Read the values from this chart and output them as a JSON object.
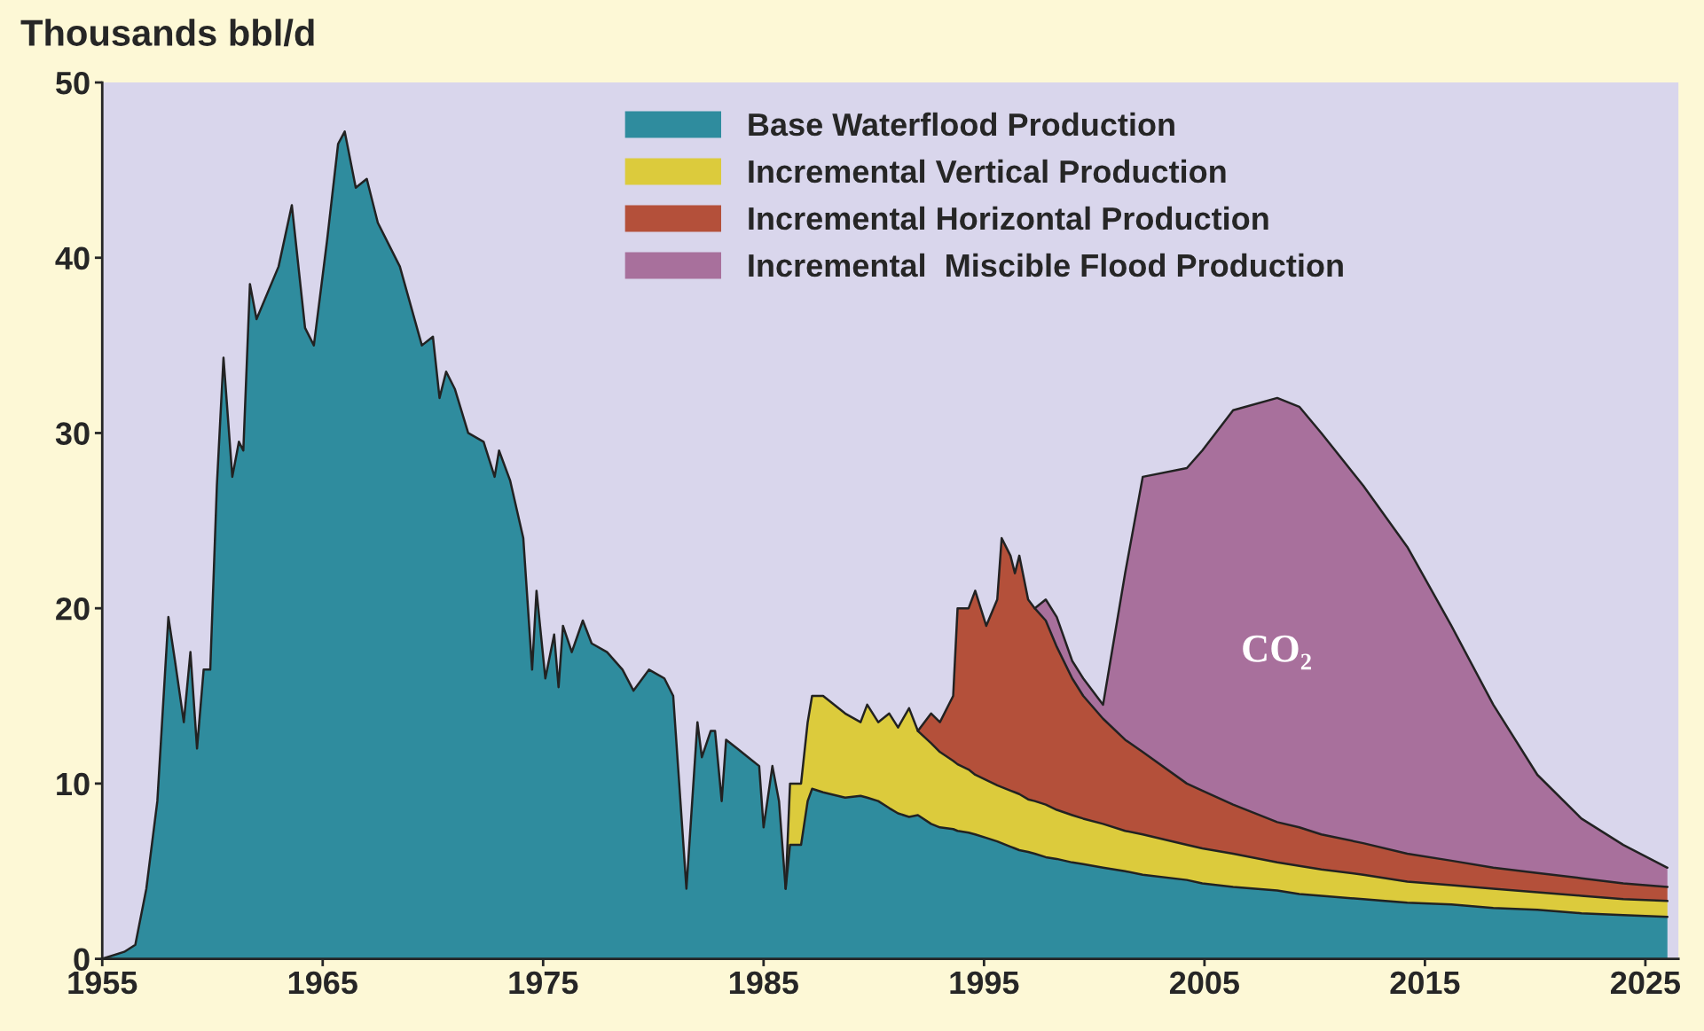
{
  "chart_data": {
    "type": "area",
    "stacked": true,
    "ylabel": "Thousands bbl/d",
    "xlim": [
      1955,
      2026.5
    ],
    "xticks": [
      1955,
      1965,
      1975,
      1985,
      1995,
      2005,
      2015,
      2025
    ],
    "ylim": [
      0,
      50
    ],
    "yticks": [
      0,
      10,
      20,
      30,
      40,
      50
    ],
    "grid": false,
    "legend": "top",
    "annotations": [
      "CO₂"
    ],
    "x": [
      1955,
      1956,
      1956.5,
      1957,
      1957.5,
      1958,
      1958.3,
      1958.7,
      1959,
      1959.3,
      1959.6,
      1959.9,
      1960.2,
      1960.5,
      1960.9,
      1961.2,
      1961.4,
      1961.7,
      1962,
      1963,
      1963.6,
      1964.2,
      1964.6,
      1965.2,
      1965.7,
      1966,
      1966.5,
      1967,
      1967.5,
      1968.5,
      1969.5,
      1970,
      1970.3,
      1970.6,
      1971,
      1971.6,
      1972.3,
      1972.8,
      1973,
      1973.5,
      1974.1,
      1974.5,
      1974.7,
      1975.1,
      1975.5,
      1975.7,
      1975.9,
      1976.3,
      1976.8,
      1977.2,
      1977.9,
      1978.6,
      1979.1,
      1979.8,
      1980.5,
      1980.9,
      1981.5,
      1982,
      1982.2,
      1982.6,
      1982.8,
      1983.1,
      1983.3,
      1983.8,
      1984.3,
      1984.8,
      1985,
      1985.4,
      1985.7,
      1986,
      1986.2,
      1986.7,
      1987,
      1987.2,
      1987.7,
      1988.7,
      1989.4,
      1989.7,
      1990.2,
      1990.7,
      1991.1,
      1991.6,
      1992,
      1992.6,
      1993,
      1993.6,
      1993.8,
      1994.3,
      1994.6,
      1995.1,
      1995.6,
      1995.8,
      1996.2,
      1996.4,
      1996.6,
      1997,
      1997.3,
      1997.8,
      1998.3,
      1999,
      1999.5,
      2000.4,
      2001.4,
      2002.2,
      2004.2,
      2004.9,
      2006.3,
      2008.3,
      2009.3,
      2010.3,
      2012.2,
      2014.2,
      2016.2,
      2018.1,
      2020.1,
      2022.1,
      2024,
      2026
    ],
    "series": [
      {
        "name": "Base Waterflood Production",
        "color": "#2f8c9e",
        "values": [
          0,
          0.4,
          0.8,
          4,
          9,
          19.5,
          17,
          13.5,
          17.5,
          12,
          16.5,
          16.5,
          27,
          34.3,
          27.5,
          29.5,
          29,
          38.5,
          36.5,
          39.5,
          43,
          36,
          35,
          41,
          46.5,
          47.2,
          44,
          44.5,
          42,
          39.5,
          35,
          35.5,
          32,
          33.5,
          32.5,
          30,
          29.5,
          27.5,
          29,
          27.3,
          24,
          16.5,
          21,
          16,
          18.5,
          15.5,
          19,
          17.5,
          19.3,
          18,
          17.5,
          16.5,
          15.3,
          16.5,
          16,
          15,
          4,
          13.5,
          11.5,
          13,
          13,
          9,
          12.5,
          12,
          11.5,
          11,
          7.5,
          11,
          9,
          4,
          6.5,
          6.5,
          9,
          9.7,
          9.5,
          9.2,
          9.3,
          9.2,
          9,
          8.6,
          8.3,
          8.1,
          8.2,
          7.7,
          7.5,
          7.4,
          7.3,
          7.2,
          7.1,
          6.9,
          6.7,
          6.6,
          6.4,
          6.3,
          6.2,
          6.1,
          6,
          5.8,
          5.7,
          5.5,
          5.4,
          5.2,
          5,
          4.8,
          4.5,
          4.3,
          4.1,
          3.9,
          3.7,
          3.6,
          3.4,
          3.2,
          3.1,
          2.9,
          2.8,
          2.6,
          2.5,
          2.4
        ]
      },
      {
        "name": "Incremental Vertical Production",
        "color": "#dccb3c",
        "values": [
          null,
          null,
          null,
          null,
          null,
          null,
          null,
          null,
          null,
          null,
          null,
          null,
          null,
          null,
          null,
          null,
          null,
          null,
          null,
          null,
          null,
          null,
          null,
          null,
          null,
          null,
          null,
          null,
          null,
          null,
          null,
          null,
          null,
          null,
          null,
          null,
          null,
          null,
          null,
          null,
          null,
          null,
          null,
          null,
          null,
          null,
          null,
          null,
          null,
          null,
          null,
          null,
          null,
          null,
          null,
          null,
          null,
          null,
          null,
          null,
          null,
          null,
          null,
          null,
          null,
          null,
          null,
          null,
          null,
          0,
          3.5,
          3.5,
          4.5,
          5.3,
          5.5,
          4.8,
          4.2,
          5.3,
          4.5,
          5.4,
          4.9,
          6.2,
          4.8,
          4.6,
          4.3,
          3.9,
          3.8,
          3.6,
          3.4,
          3.3,
          3.2,
          3.2,
          3.2,
          3.2,
          3.2,
          3.0,
          3.0,
          3.0,
          2.8,
          2.7,
          2.6,
          2.5,
          2.3,
          2.3,
          2.0,
          2.0,
          1.9,
          1.6,
          1.6,
          1.5,
          1.4,
          1.2,
          1.1,
          1.1,
          1.0,
          1.0,
          0.9,
          0.9
        ]
      },
      {
        "name": "Incremental Horizontal Production",
        "color": "#b4503a",
        "values": [
          null,
          null,
          null,
          null,
          null,
          null,
          null,
          null,
          null,
          null,
          null,
          null,
          null,
          null,
          null,
          null,
          null,
          null,
          null,
          null,
          null,
          null,
          null,
          null,
          null,
          null,
          null,
          null,
          null,
          null,
          null,
          null,
          null,
          null,
          null,
          null,
          null,
          null,
          null,
          null,
          null,
          null,
          null,
          null,
          null,
          null,
          null,
          null,
          null,
          null,
          null,
          null,
          null,
          null,
          null,
          null,
          null,
          null,
          null,
          null,
          null,
          null,
          null,
          null,
          null,
          null,
          null,
          null,
          null,
          null,
          null,
          null,
          null,
          null,
          null,
          null,
          null,
          null,
          null,
          null,
          null,
          null,
          0,
          1.7,
          1.7,
          3.7,
          8.9,
          9.2,
          10.5,
          8.8,
          10.6,
          14.2,
          13.4,
          12.5,
          13.6,
          11.4,
          11,
          10.5,
          9.3,
          7.8,
          7,
          6,
          5.2,
          4.7,
          3.5,
          3.3,
          2.8,
          2.3,
          2.2,
          2.0,
          1.8,
          1.6,
          1.4,
          1.2,
          1.1,
          1.0,
          0.9,
          0.8
        ]
      },
      {
        "name": "Incremental  Miscible Flood Production",
        "color": "#a8709c",
        "values": [
          null,
          null,
          null,
          null,
          null,
          null,
          null,
          null,
          null,
          null,
          null,
          null,
          null,
          null,
          null,
          null,
          null,
          null,
          null,
          null,
          null,
          null,
          null,
          null,
          null,
          null,
          null,
          null,
          null,
          null,
          null,
          null,
          null,
          null,
          null,
          null,
          null,
          null,
          null,
          null,
          null,
          null,
          null,
          null,
          null,
          null,
          null,
          null,
          null,
          null,
          null,
          null,
          null,
          null,
          null,
          null,
          null,
          null,
          null,
          null,
          null,
          null,
          null,
          null,
          null,
          null,
          null,
          null,
          null,
          null,
          null,
          null,
          null,
          null,
          null,
          null,
          null,
          null,
          null,
          null,
          null,
          null,
          null,
          null,
          null,
          null,
          null,
          null,
          null,
          null,
          null,
          null,
          null,
          null,
          null,
          null,
          0,
          1.2,
          1.7,
          1,
          1,
          0.8,
          9.5,
          15.7,
          18,
          19.4,
          22.5,
          24.2,
          24,
          22.9,
          20.4,
          17.5,
          13.4,
          9.3,
          5.6,
          3.4,
          2.2,
          1.1
        ]
      }
    ]
  }
}
